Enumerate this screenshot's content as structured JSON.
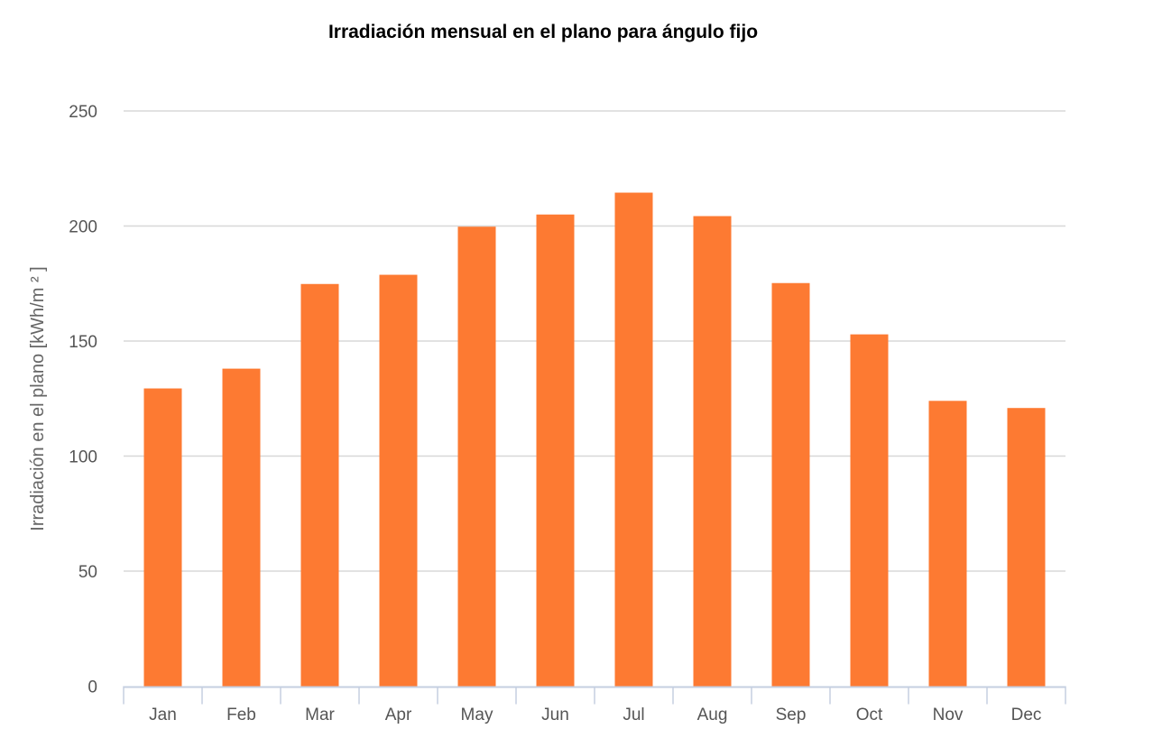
{
  "chart_data": {
    "type": "bar",
    "title": "Irradiación mensual en el plano para ángulo fijo",
    "xlabel": "",
    "ylabel": "Irradiación en el plano [kWh/m ² ]",
    "categories": [
      "Jan",
      "Feb",
      "Mar",
      "Apr",
      "May",
      "Jun",
      "Jul",
      "Aug",
      "Sep",
      "Oct",
      "Nov",
      "Dec"
    ],
    "values": [
      129.4,
      138.0,
      174.8,
      178.8,
      199.7,
      205.0,
      214.5,
      204.3,
      175.2,
      152.9,
      124.0,
      120.9
    ],
    "ylim": [
      0,
      250
    ],
    "yticks": [
      0,
      50,
      100,
      150,
      200,
      250
    ],
    "grid": true,
    "bar_color": "#fd7a32"
  }
}
